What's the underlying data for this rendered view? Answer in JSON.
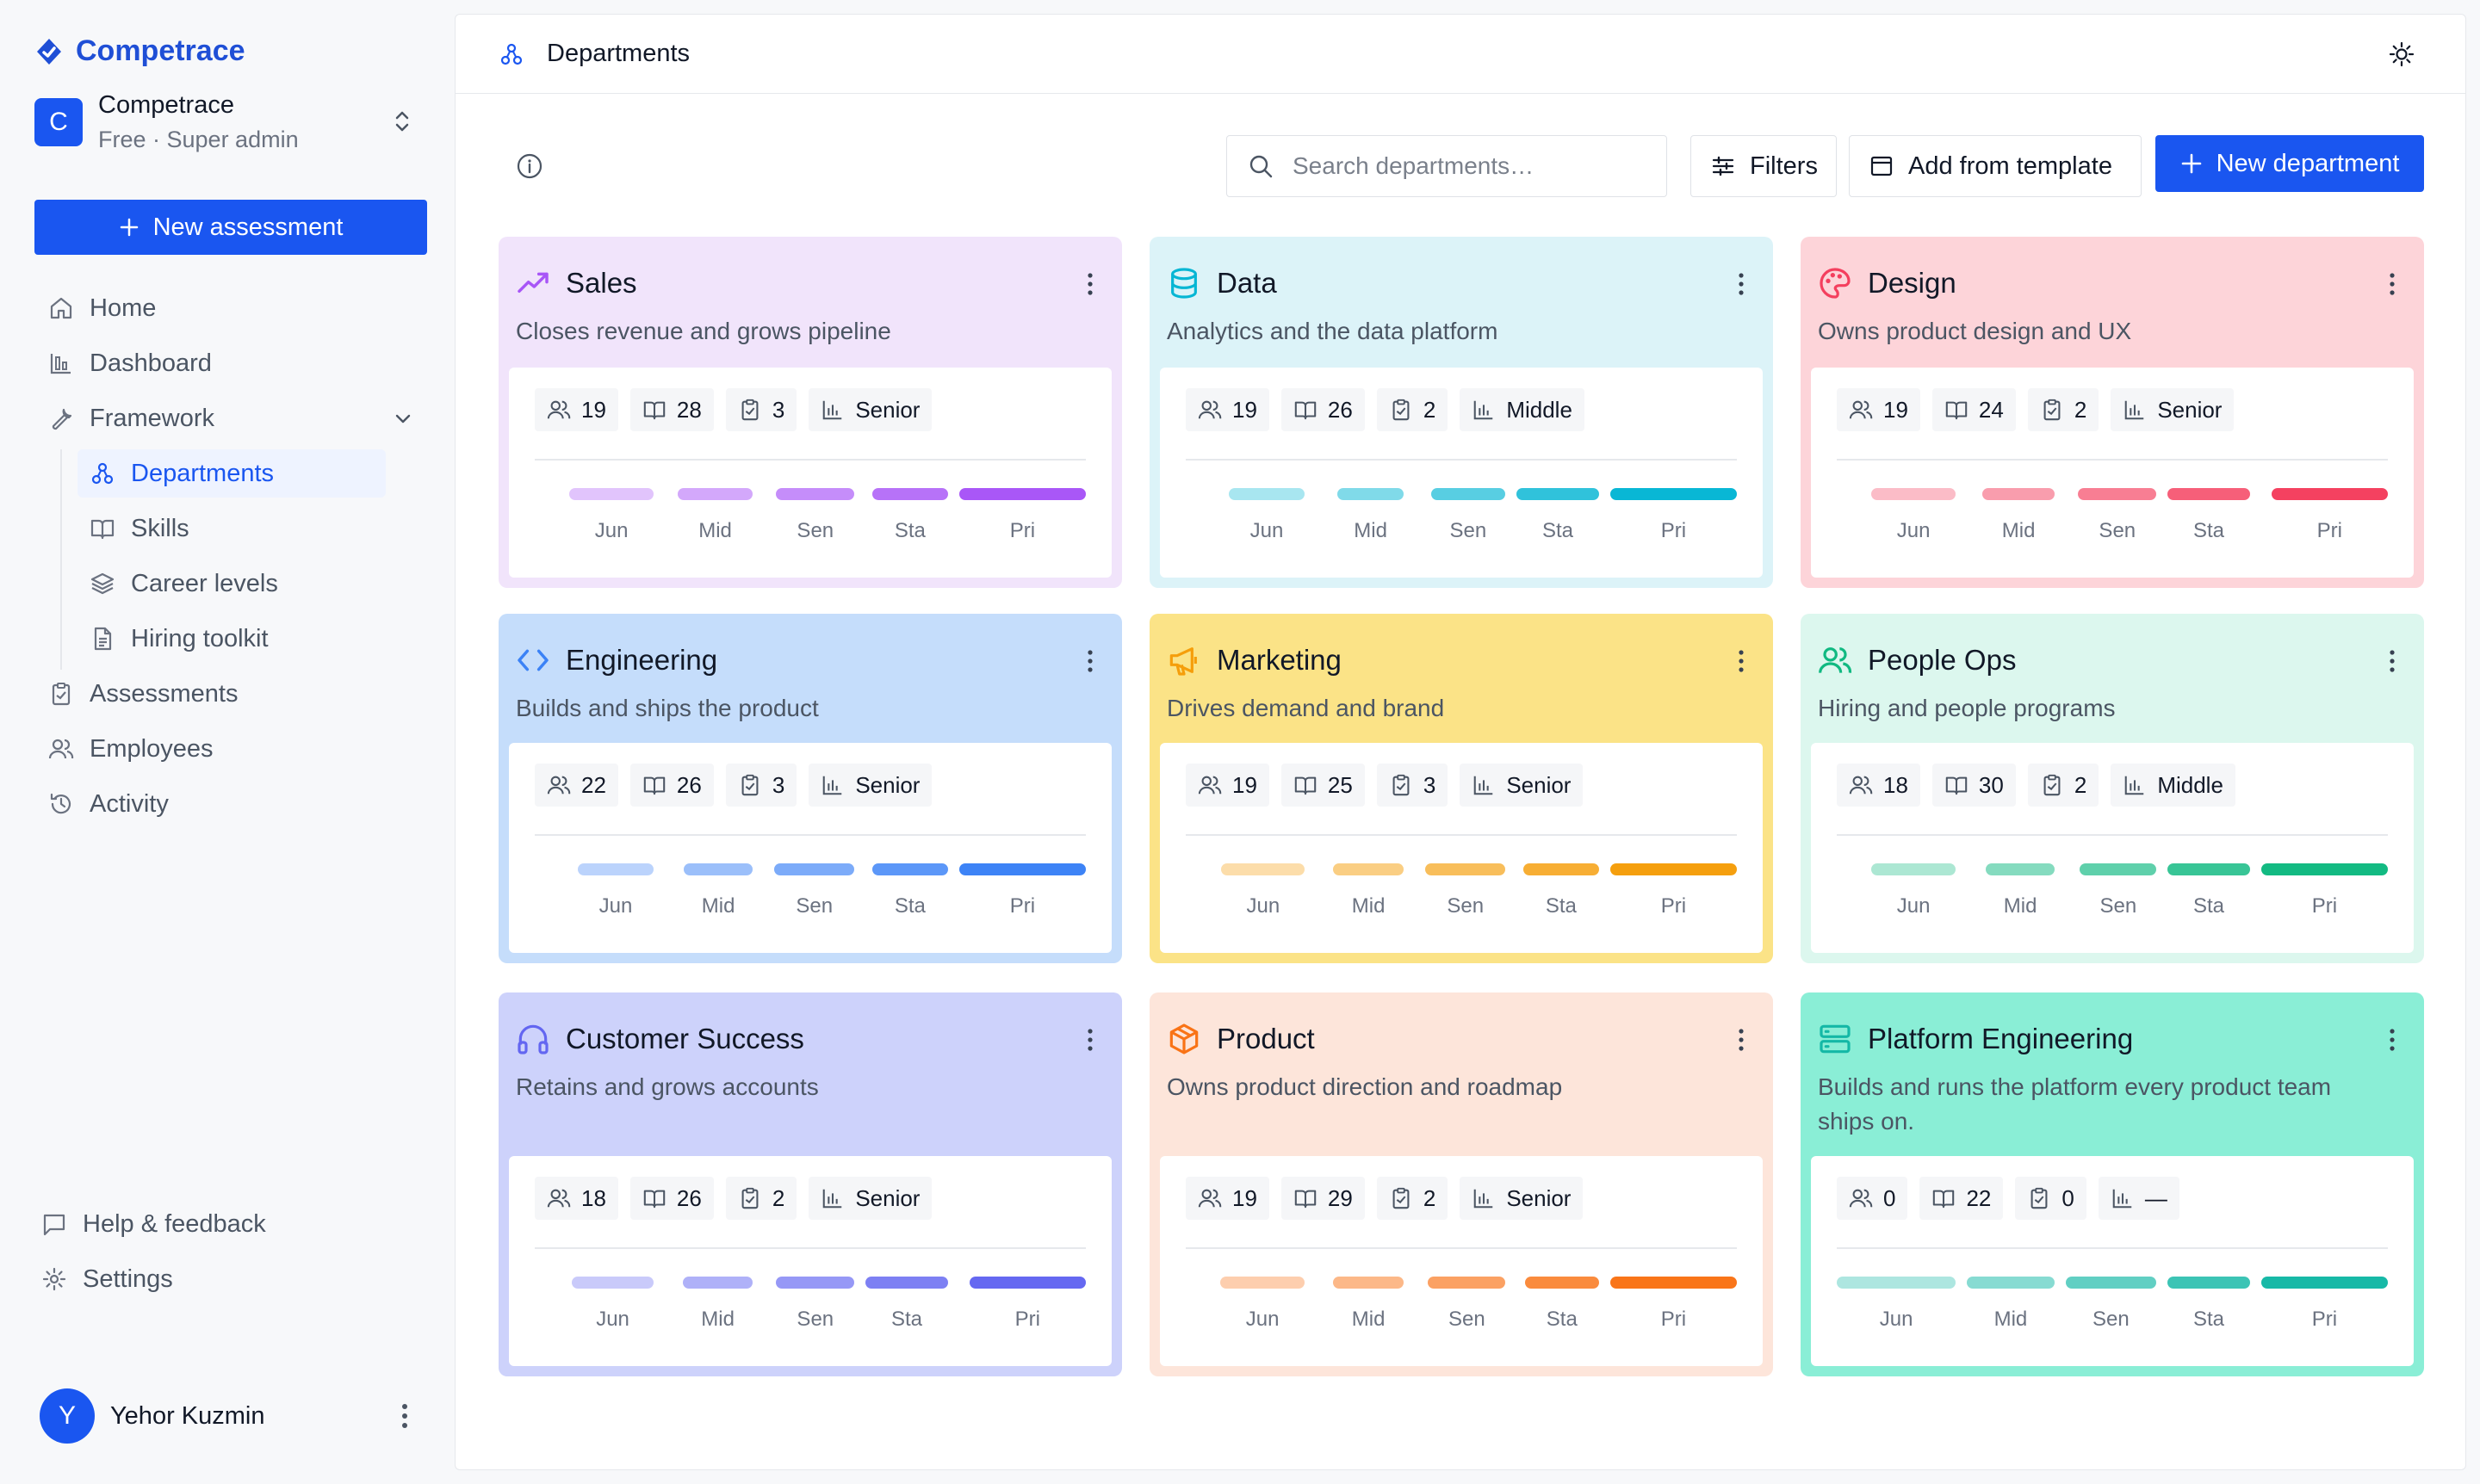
{
  "brand": {
    "name": "Competrace"
  },
  "org": {
    "initial": "C",
    "name": "Competrace",
    "plan": "Free · Super admin"
  },
  "sidebar": {
    "new_assessment": "New assessment",
    "nav": {
      "home": "Home",
      "dashboard": "Dashboard",
      "framework": "Framework",
      "departments": "Departments",
      "skills": "Skills",
      "career_levels": "Career levels",
      "hiring_toolkit": "Hiring toolkit",
      "assessments": "Assessments",
      "employees": "Employees",
      "activity": "Activity"
    },
    "help": "Help & feedback",
    "settings": "Settings"
  },
  "user": {
    "initial": "Y",
    "name": "Yehor Kuzmin"
  },
  "topbar": {
    "title": "Departments"
  },
  "toolbar": {
    "search_placeholder": "Search departments…",
    "filters": "Filters",
    "add_template": "Add from template",
    "new_department": "New department"
  },
  "level_labels": [
    "Jun",
    "Mid",
    "Sen",
    "Sta",
    "Pri"
  ],
  "departments": [
    {
      "name": "Sales",
      "description": "Closes revenue and grows pipeline",
      "icon": "trending-up-icon",
      "people": "19",
      "skills": "28",
      "assessments": "3",
      "level": "Senior",
      "accent": "#a855f7",
      "bg": "#f1e4fb",
      "level_fill": [
        0.71,
        0.85,
        0.86,
        0.92,
        1.0
      ]
    },
    {
      "name": "Data",
      "description": "Analytics and the data platform",
      "icon": "database-icon",
      "people": "19",
      "skills": "26",
      "assessments": "2",
      "level": "Middle",
      "accent": "#06b6d4",
      "bg": "#dcf3f8",
      "level_fill": [
        0.64,
        0.75,
        0.82,
        1.0,
        1.0
      ]
    },
    {
      "name": "Design",
      "description": "Owns product design and UX",
      "icon": "palette-icon",
      "people": "19",
      "skills": "24",
      "assessments": "2",
      "level": "Senior",
      "accent": "#f43f5e",
      "bg": "#fdd4d9",
      "level_fill": [
        0.71,
        0.82,
        0.86,
        1.0,
        0.92
      ]
    },
    {
      "name": "Engineering",
      "description": "Builds and ships the product",
      "icon": "code-icon",
      "people": "22",
      "skills": "26",
      "assessments": "3",
      "level": "Senior",
      "accent": "#3b82f6",
      "bg": "#c5ddfb",
      "level_fill": [
        0.64,
        0.78,
        0.88,
        0.92,
        1.0
      ]
    },
    {
      "name": "Marketing",
      "description": "Drives demand and brand",
      "icon": "megaphone-icon",
      "people": "19",
      "skills": "25",
      "assessments": "3",
      "level": "Senior",
      "accent": "#f59e0b",
      "bg": "#fbe387",
      "level_fill": [
        0.7,
        0.8,
        0.88,
        0.92,
        1.0
      ]
    },
    {
      "name": "People Ops",
      "description": "Hiring and people programs",
      "icon": "users-icon",
      "people": "18",
      "skills": "30",
      "assessments": "2",
      "level": "Middle",
      "accent": "#10b981",
      "bg": "#dcf7ee",
      "level_fill": [
        0.71,
        0.78,
        0.84,
        1.0,
        1.0
      ]
    },
    {
      "name": "Customer Success",
      "description": "Retains and grows accounts",
      "icon": "headphones-icon",
      "people": "18",
      "skills": "26",
      "assessments": "2",
      "level": "Senior",
      "accent": "#6366f1",
      "bg": "#cdd2fb",
      "level_fill": [
        0.69,
        0.79,
        0.86,
        1.0,
        0.92
      ]
    },
    {
      "name": "Product",
      "description": "Owns product direction and roadmap",
      "icon": "box-icon",
      "people": "19",
      "skills": "29",
      "assessments": "2",
      "level": "Senior",
      "accent": "#f97316",
      "bg": "#fde5da",
      "level_fill": [
        0.71,
        0.8,
        0.85,
        0.9,
        1.0
      ]
    },
    {
      "name": "Platform Engineering",
      "description": "Builds and runs the platform every product team ships on.",
      "icon": "server-icon",
      "people": "0",
      "skills": "22",
      "assessments": "0",
      "level": "—",
      "accent": "#14b8a6",
      "bg": "#8aeed6",
      "level_fill": [
        1.0,
        1.0,
        1.0,
        1.0,
        1.0
      ]
    }
  ]
}
